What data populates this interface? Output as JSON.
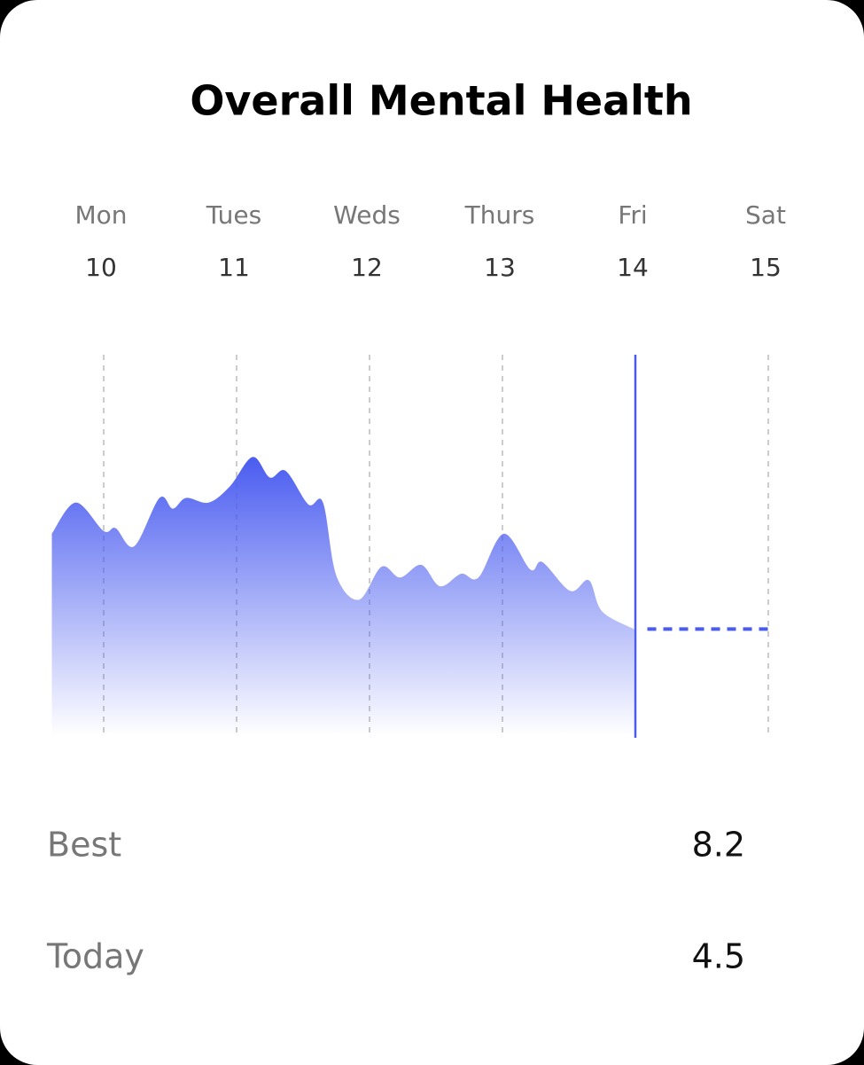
{
  "chart_data": {
    "type": "area",
    "title": "Overall Mental Health",
    "categories": [
      "Mon",
      "Tues",
      "Weds",
      "Thurs",
      "Fri",
      "Sat"
    ],
    "xticks": [
      10,
      11,
      12,
      13,
      14,
      15
    ],
    "highlight": "Fri",
    "color": "#4a5cf0",
    "xlim": [
      9.6,
      15.4
    ],
    "ylim": [
      2.2,
      10.4
    ],
    "x": [
      9.61,
      9.79,
      10.0,
      10.09,
      10.23,
      10.42,
      10.52,
      10.62,
      10.79,
      10.95,
      11.12,
      11.25,
      11.37,
      11.54,
      11.65,
      11.75,
      11.92,
      12.09,
      12.23,
      12.39,
      12.53,
      12.69,
      12.82,
      13.01,
      13.21,
      13.3,
      13.51,
      13.65,
      13.75,
      13.99
    ],
    "values": [
      6.55,
      7.22,
      6.61,
      6.67,
      6.28,
      7.32,
      7.09,
      7.32,
      7.22,
      7.57,
      8.2,
      7.76,
      7.9,
      7.18,
      7.22,
      5.65,
      5.13,
      5.84,
      5.61,
      5.88,
      5.42,
      5.69,
      5.61,
      6.55,
      5.78,
      5.94,
      5.32,
      5.55,
      4.88,
      4.5
    ],
    "stats": [
      {
        "label": "Best",
        "value": 8.2
      },
      {
        "label": "Today",
        "value": 4.5
      }
    ]
  }
}
